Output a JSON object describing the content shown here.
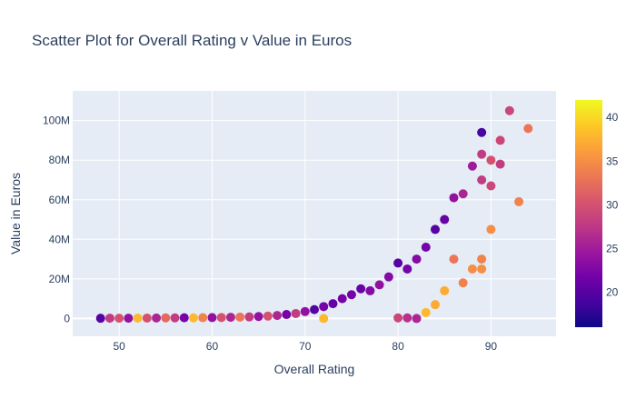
{
  "chart_data": {
    "type": "scatter",
    "title": "Scatter Plot for Overall Rating v Value in Euros",
    "xlabel": "Overall Rating",
    "ylabel": "Value in Euros",
    "xlim": [
      45,
      97
    ],
    "ylim": [
      -9000000,
      115000000
    ],
    "x_ticks": [
      50,
      60,
      70,
      80,
      90
    ],
    "y_ticks": [
      {
        "value": 0,
        "label": "0"
      },
      {
        "value": 20000000,
        "label": "20M"
      },
      {
        "value": 40000000,
        "label": "40M"
      },
      {
        "value": 60000000,
        "label": "60M"
      },
      {
        "value": 80000000,
        "label": "80M"
      },
      {
        "value": 100000000,
        "label": "100M"
      }
    ],
    "colorscale": {
      "name": "Plasma",
      "range": [
        16,
        42
      ],
      "ticks": [
        20,
        25,
        30,
        35,
        40
      ],
      "stops": [
        "#0d0887",
        "#46039f",
        "#7201a8",
        "#9c179e",
        "#bd3786",
        "#d8576b",
        "#ed7953",
        "#fb9f3a",
        "#fdca26",
        "#f0f921"
      ]
    },
    "colors": {
      "plot_bg": "#e5ecf6",
      "grid": "#ffffff",
      "text": "#2a3f5f"
    },
    "points": [
      {
        "x": 48,
        "y": 100000,
        "c": 20
      },
      {
        "x": 49,
        "y": 150000,
        "c": 28
      },
      {
        "x": 50,
        "y": 120000,
        "c": 30
      },
      {
        "x": 51,
        "y": 150000,
        "c": 24
      },
      {
        "x": 52,
        "y": 180000,
        "c": 38
      },
      {
        "x": 53,
        "y": 200000,
        "c": 30
      },
      {
        "x": 54,
        "y": 250000,
        "c": 26
      },
      {
        "x": 55,
        "y": 300000,
        "c": 32
      },
      {
        "x": 56,
        "y": 300000,
        "c": 28
      },
      {
        "x": 57,
        "y": 350000,
        "c": 22
      },
      {
        "x": 58,
        "y": 300000,
        "c": 38
      },
      {
        "x": 59,
        "y": 400000,
        "c": 34
      },
      {
        "x": 60,
        "y": 450000,
        "c": 24
      },
      {
        "x": 61,
        "y": 500000,
        "c": 30
      },
      {
        "x": 62,
        "y": 600000,
        "c": 26
      },
      {
        "x": 63,
        "y": 700000,
        "c": 33
      },
      {
        "x": 64,
        "y": 800000,
        "c": 28
      },
      {
        "x": 65,
        "y": 1000000,
        "c": 24
      },
      {
        "x": 66,
        "y": 1200000,
        "c": 30
      },
      {
        "x": 67,
        "y": 1500000,
        "c": 26
      },
      {
        "x": 68,
        "y": 2000000,
        "c": 22
      },
      {
        "x": 69,
        "y": 2500000,
        "c": 28
      },
      {
        "x": 70,
        "y": 3500000,
        "c": 24
      },
      {
        "x": 71,
        "y": 4500000,
        "c": 20
      },
      {
        "x": 72,
        "y": 6000000,
        "c": 22
      },
      {
        "x": 72,
        "y": 0,
        "c": 38
      },
      {
        "x": 73,
        "y": 7500000,
        "c": 21
      },
      {
        "x": 74,
        "y": 10000000,
        "c": 22
      },
      {
        "x": 75,
        "y": 12000000,
        "c": 22
      },
      {
        "x": 76,
        "y": 15000000,
        "c": 21
      },
      {
        "x": 77,
        "y": 14000000,
        "c": 23
      },
      {
        "x": 78,
        "y": 17000000,
        "c": 24
      },
      {
        "x": 79,
        "y": 21000000,
        "c": 23
      },
      {
        "x": 80,
        "y": 28000000,
        "c": 20
      },
      {
        "x": 80,
        "y": 300000,
        "c": 29
      },
      {
        "x": 81,
        "y": 25000000,
        "c": 22
      },
      {
        "x": 81,
        "y": 300000,
        "c": 27
      },
      {
        "x": 82,
        "y": 30000000,
        "c": 23
      },
      {
        "x": 82,
        "y": 0,
        "c": 26
      },
      {
        "x": 83,
        "y": 36000000,
        "c": 22
      },
      {
        "x": 83,
        "y": 3000000,
        "c": 38
      },
      {
        "x": 84,
        "y": 45000000,
        "c": 20
      },
      {
        "x": 84,
        "y": 7000000,
        "c": 37
      },
      {
        "x": 85,
        "y": 50000000,
        "c": 21
      },
      {
        "x": 85,
        "y": 14000000,
        "c": 37
      },
      {
        "x": 86,
        "y": 61000000,
        "c": 24
      },
      {
        "x": 86,
        "y": 30000000,
        "c": 33
      },
      {
        "x": 87,
        "y": 63000000,
        "c": 26
      },
      {
        "x": 87,
        "y": 18000000,
        "c": 34
      },
      {
        "x": 88,
        "y": 77000000,
        "c": 25
      },
      {
        "x": 88,
        "y": 25000000,
        "c": 35
      },
      {
        "x": 89,
        "y": 94000000,
        "c": 19
      },
      {
        "x": 89,
        "y": 83000000,
        "c": 28
      },
      {
        "x": 89,
        "y": 70000000,
        "c": 28
      },
      {
        "x": 89,
        "y": 30000000,
        "c": 34
      },
      {
        "x": 89,
        "y": 25000000,
        "c": 35
      },
      {
        "x": 90,
        "y": 80000000,
        "c": 30
      },
      {
        "x": 90,
        "y": 67000000,
        "c": 29
      },
      {
        "x": 90,
        "y": 45000000,
        "c": 35
      },
      {
        "x": 91,
        "y": 90000000,
        "c": 29
      },
      {
        "x": 91,
        "y": 78000000,
        "c": 28
      },
      {
        "x": 92,
        "y": 105000000,
        "c": 29
      },
      {
        "x": 93,
        "y": 59000000,
        "c": 34
      },
      {
        "x": 94,
        "y": 96000000,
        "c": 33
      }
    ]
  }
}
